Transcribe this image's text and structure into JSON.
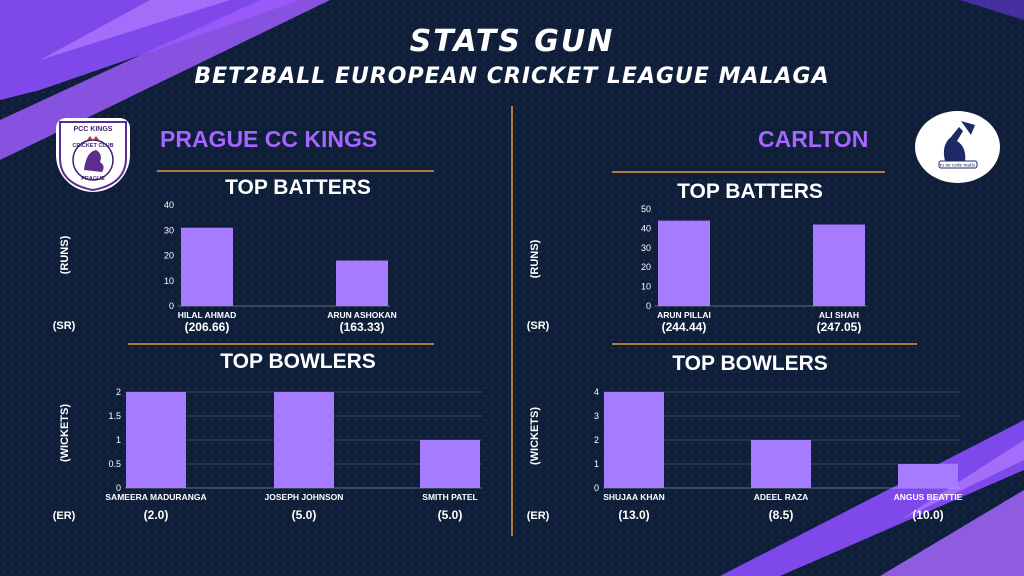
{
  "title": "STATS GUN",
  "subtitle": "BET2BALL EUROPEAN CRICKET LEAGUE MALAGA",
  "colors": {
    "background": "#0f1f3a",
    "accent": "#a466ff",
    "bar": "#a67bff",
    "divider": "#b07a3a"
  },
  "left_team": {
    "name": "PRAGUE CC KINGS",
    "logo": {
      "top_text": "PCC KINGS",
      "ring_text": "CRICKET CLUB",
      "bottom_text": "PRAGUE"
    },
    "batters_title": "TOP BATTERS",
    "bowlers_title": "TOP BOWLERS"
  },
  "right_team": {
    "name": "CARLTON",
    "logo": {
      "motto": "tu ne cede malis"
    },
    "batters_title": "TOP BATTERS",
    "bowlers_title": "TOP BOWLERS"
  },
  "chart_data": [
    {
      "type": "bar",
      "team": "PRAGUE CC KINGS",
      "title": "TOP BATTERS",
      "ylabel": "(RUNS)",
      "sublabel": "(SR)",
      "categories": [
        "HILAL AHMAD",
        "ARUN ASHOKAN"
      ],
      "values": [
        31,
        18
      ],
      "secondary": [
        "(206.66)",
        "(163.33)"
      ],
      "ylim": [
        0,
        40
      ],
      "yticks": [
        0,
        10,
        20,
        30,
        40
      ],
      "grid": false
    },
    {
      "type": "bar",
      "team": "PRAGUE CC KINGS",
      "title": "TOP BOWLERS",
      "ylabel": "(WICKETS)",
      "sublabel": "(ER)",
      "categories": [
        "SAMEERA MADURANGA",
        "JOSEPH JOHNSON",
        "SMITH PATEL"
      ],
      "values": [
        2,
        2,
        1
      ],
      "secondary": [
        "(2.0)",
        "(5.0)",
        "(5.0)"
      ],
      "ylim": [
        0,
        2
      ],
      "yticks": [
        0,
        0.5,
        1,
        1.5,
        2
      ],
      "grid": true
    },
    {
      "type": "bar",
      "team": "CARLTON",
      "title": "TOP BATTERS",
      "ylabel": "(RUNS)",
      "sublabel": "(SR)",
      "categories": [
        "ARUN PILLAI",
        "ALI SHAH"
      ],
      "values": [
        44,
        42
      ],
      "secondary": [
        "(244.44)",
        "(247.05)"
      ],
      "ylim": [
        0,
        50
      ],
      "yticks": [
        0,
        10,
        20,
        30,
        40,
        50
      ],
      "grid": false
    },
    {
      "type": "bar",
      "team": "CARLTON",
      "title": "TOP BOWLERS",
      "ylabel": "(WICKETS)",
      "sublabel": "(ER)",
      "categories": [
        "SHUJAA KHAN",
        "ADEEL RAZA",
        "ANGUS BEATTIE"
      ],
      "values": [
        4,
        2,
        1
      ],
      "secondary": [
        "(13.0)",
        "(8.5)",
        "(10.0)"
      ],
      "ylim": [
        0,
        4
      ],
      "yticks": [
        0,
        1,
        2,
        3,
        4
      ],
      "grid": true
    }
  ]
}
